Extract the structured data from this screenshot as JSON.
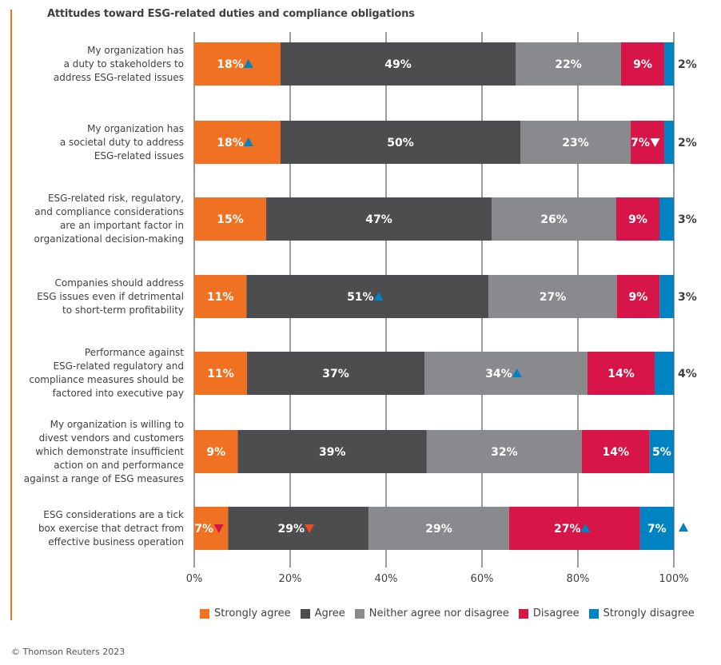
{
  "chart_data": {
    "type": "bar",
    "orientation": "horizontal",
    "stacked": true,
    "title": "Attitudes toward ESG-related duties and compliance obligations",
    "xlim": [
      0,
      100
    ],
    "xticks": [
      "0%",
      "20%",
      "40%",
      "60%",
      "80%",
      "100%"
    ],
    "categories": [
      "My organization has\na duty to stakeholders to\naddress ESG-related issues",
      "My organization has\na societal duty to address\nESG-related issues",
      "ESG-related risk, regulatory,\nand compliance considerations\nare an important factor in\norganizational decision-making",
      "Companies should address\nESG issues even if detrimental\nto short-term profitability",
      "Performance against\nESG-related regulatory and\ncompliance measures should be\nfactored into executive pay",
      "My organization is willing to\ndivest vendors and customers\nwhich demonstrate insufficient\naction on and performance\nagainst a range of ESG measures",
      "ESG considerations are a tick\nbox exercise that detract from\neffective business operation"
    ],
    "series": [
      {
        "name": "Strongly agree",
        "color": "#f07122",
        "values": [
          18,
          18,
          15,
          11,
          11,
          9,
          7
        ]
      },
      {
        "name": "Agree",
        "color": "#4d4d4f",
        "values": [
          49,
          50,
          47,
          51,
          37,
          39,
          29
        ]
      },
      {
        "name": "Neither agree nor disagree",
        "color": "#898a8d",
        "values": [
          22,
          23,
          26,
          27,
          34,
          32,
          29
        ]
      },
      {
        "name": "Disagree",
        "color": "#d71549",
        "values": [
          9,
          7,
          9,
          9,
          14,
          14,
          27
        ]
      },
      {
        "name": "Strongly disagree",
        "color": "#0083c2",
        "values": [
          2,
          2,
          3,
          3,
          4,
          5,
          7
        ]
      }
    ],
    "markers": [
      {
        "row": 0,
        "series": 0,
        "dir": "up",
        "color": "#0083c2"
      },
      {
        "row": 1,
        "series": 0,
        "dir": "up",
        "color": "#0083c2"
      },
      {
        "row": 1,
        "series": 3,
        "dir": "down",
        "color": "#ffffff"
      },
      {
        "row": 3,
        "series": 1,
        "dir": "up",
        "color": "#0083c2"
      },
      {
        "row": 4,
        "series": 2,
        "dir": "up",
        "color": "#0083c2"
      },
      {
        "row": 6,
        "series": 0,
        "dir": "down",
        "color": "#d71549"
      },
      {
        "row": 6,
        "series": 1,
        "dir": "down",
        "color": "#f04a23"
      },
      {
        "row": 6,
        "series": 3,
        "dir": "up",
        "color": "#0083c2"
      },
      {
        "row": 6,
        "series": 4,
        "dir": "up",
        "color": "#0083c2",
        "outside": true
      }
    ],
    "legend": "bottom"
  },
  "footer": "© Thomson Reuters 2023"
}
